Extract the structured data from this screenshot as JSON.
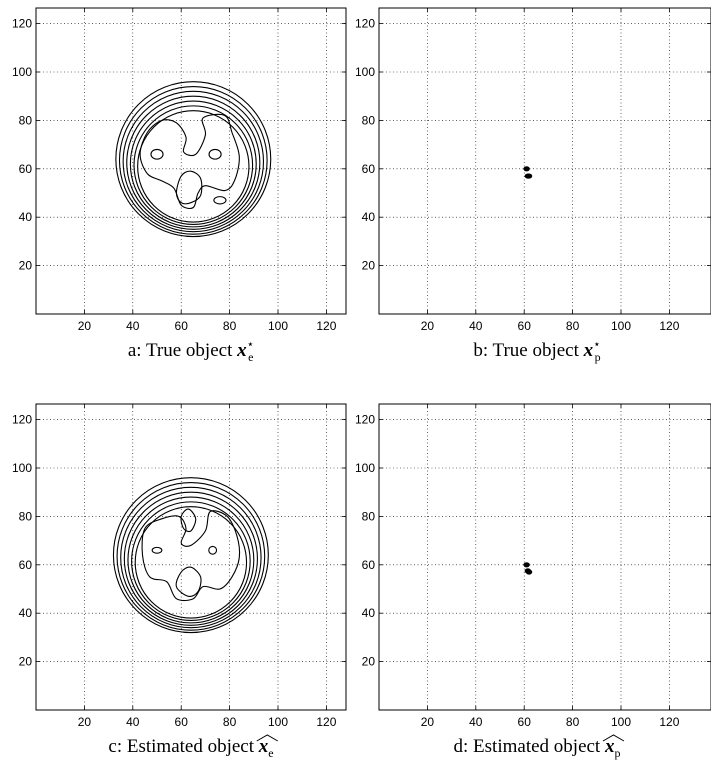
{
  "chart_data": [
    {
      "id": "a",
      "type": "contour",
      "caption_text": "a: True object",
      "caption_symbol": "x",
      "caption_sup": "⋆",
      "caption_sub": "e",
      "xlim": [
        0,
        128
      ],
      "ylim": [
        0,
        128
      ],
      "xticks": [
        20,
        40,
        60,
        80,
        100,
        120
      ],
      "yticks": [
        20,
        40,
        60,
        80,
        100,
        120
      ],
      "grid": true,
      "contours": [
        {
          "type": "circle",
          "cx": 65,
          "cy": 64,
          "r": 32
        },
        {
          "type": "circle",
          "cx": 65,
          "cy": 63.5,
          "r": 30.5
        },
        {
          "type": "circle",
          "cx": 65,
          "cy": 63,
          "r": 29
        },
        {
          "type": "circle",
          "cx": 65,
          "cy": 62.5,
          "r": 27.5
        },
        {
          "type": "circle",
          "cx": 65,
          "cy": 62,
          "r": 26
        },
        {
          "type": "circle",
          "cx": 65,
          "cy": 61.5,
          "r": 24.5
        },
        {
          "type": "circle",
          "cx": 65,
          "cy": 61,
          "r": 23
        },
        {
          "type": "poly",
          "points": [
            [
              46,
              75
            ],
            [
              52,
              80
            ],
            [
              58,
              79
            ],
            [
              62,
              73
            ],
            [
              61,
              67
            ],
            [
              66,
              66
            ],
            [
              70,
              74
            ],
            [
              69,
              81
            ],
            [
              78,
              82
            ],
            [
              81,
              75
            ],
            [
              84,
              65
            ],
            [
              82,
              55
            ],
            [
              78,
              51
            ],
            [
              70,
              53
            ],
            [
              67,
              50
            ],
            [
              65,
              44
            ],
            [
              60,
              45
            ],
            [
              57,
              52
            ],
            [
              52,
              55
            ],
            [
              46,
              58
            ],
            [
              43,
              66
            ]
          ]
        },
        {
          "type": "ellipse",
          "cx": 50,
          "cy": 66,
          "rx": 2.5,
          "ry": 2
        },
        {
          "type": "ellipse",
          "cx": 74,
          "cy": 66,
          "rx": 2.5,
          "ry": 2
        },
        {
          "type": "poly",
          "points": [
            [
              58,
              50
            ],
            [
              60,
              57
            ],
            [
              64,
              59
            ],
            [
              68,
              56
            ],
            [
              68,
              49
            ],
            [
              64,
              46
            ],
            [
              60,
              46
            ]
          ]
        },
        {
          "type": "ellipse",
          "cx": 76,
          "cy": 47,
          "rx": 2.5,
          "ry": 1.5
        }
      ]
    },
    {
      "id": "b",
      "type": "scatter",
      "caption_text": "b: True object",
      "caption_symbol": "x",
      "caption_sup": "⋆",
      "caption_sub": "p",
      "xlim": [
        0,
        128
      ],
      "ylim": [
        0,
        128
      ],
      "xticks": [
        20,
        40,
        60,
        80,
        100,
        120
      ],
      "yticks": [
        20,
        40,
        60,
        80,
        100,
        120
      ],
      "grid": true,
      "points": [
        [
          61,
          60
        ],
        [
          61.5,
          57
        ],
        [
          62,
          57
        ]
      ]
    },
    {
      "id": "c",
      "type": "contour",
      "caption_text": "c: Estimated object",
      "caption_symbol": "x",
      "caption_sup": "",
      "caption_sub": "e",
      "caption_hat": true,
      "xlim": [
        0,
        128
      ],
      "ylim": [
        0,
        128
      ],
      "xticks": [
        20,
        40,
        60,
        80,
        100,
        120
      ],
      "yticks": [
        20,
        40,
        60,
        80,
        100,
        120
      ],
      "grid": true,
      "contours": [
        {
          "type": "circle",
          "cx": 64,
          "cy": 64,
          "r": 32
        },
        {
          "type": "circle",
          "cx": 64,
          "cy": 63.5,
          "r": 30.5
        },
        {
          "type": "circle",
          "cx": 64,
          "cy": 63,
          "r": 29
        },
        {
          "type": "circle",
          "cx": 64,
          "cy": 62.5,
          "r": 27.5
        },
        {
          "type": "circle",
          "cx": 64,
          "cy": 62,
          "r": 26
        },
        {
          "type": "circle",
          "cx": 64,
          "cy": 61.5,
          "r": 24.5
        },
        {
          "type": "circle",
          "cx": 64,
          "cy": 61,
          "r": 23
        },
        {
          "type": "poly",
          "points": [
            [
              45,
              75
            ],
            [
              52,
              79
            ],
            [
              59,
              80
            ],
            [
              62,
              75
            ],
            [
              60,
              69
            ],
            [
              64,
              68
            ],
            [
              70,
              74
            ],
            [
              72,
              82
            ],
            [
              79,
              80
            ],
            [
              83,
              72
            ],
            [
              84,
              63
            ],
            [
              81,
              55
            ],
            [
              76,
              50
            ],
            [
              69,
              51
            ],
            [
              65,
              46
            ],
            [
              58,
              46
            ],
            [
              54,
              53
            ],
            [
              47,
              55
            ],
            [
              44,
              64
            ]
          ]
        },
        {
          "type": "ellipse",
          "cx": 50,
          "cy": 66,
          "rx": 2,
          "ry": 1.2
        },
        {
          "type": "ellipse",
          "cx": 73,
          "cy": 66,
          "rx": 1.6,
          "ry": 1.6
        },
        {
          "type": "poly",
          "points": [
            [
              58,
              51
            ],
            [
              60,
              57
            ],
            [
              64,
              59
            ],
            [
              68,
              55
            ],
            [
              67,
              49
            ],
            [
              63,
              47
            ]
          ]
        },
        {
          "type": "poly",
          "points": [
            [
              60,
              80
            ],
            [
              63,
              83
            ],
            [
              66,
              79
            ],
            [
              64,
              74
            ],
            [
              61,
              75
            ]
          ]
        }
      ]
    },
    {
      "id": "d",
      "type": "scatter",
      "caption_text": "d: Estimated object",
      "caption_symbol": "x",
      "caption_sup": "",
      "caption_sub": "p",
      "caption_hat": true,
      "xlim": [
        0,
        128
      ],
      "ylim": [
        0,
        128
      ],
      "xticks": [
        20,
        40,
        60,
        80,
        100,
        120
      ],
      "yticks": [
        20,
        40,
        60,
        80,
        100,
        120
      ],
      "grid": true,
      "points": [
        [
          61,
          60
        ],
        [
          61.5,
          57.5
        ],
        [
          62,
          57
        ]
      ]
    }
  ]
}
